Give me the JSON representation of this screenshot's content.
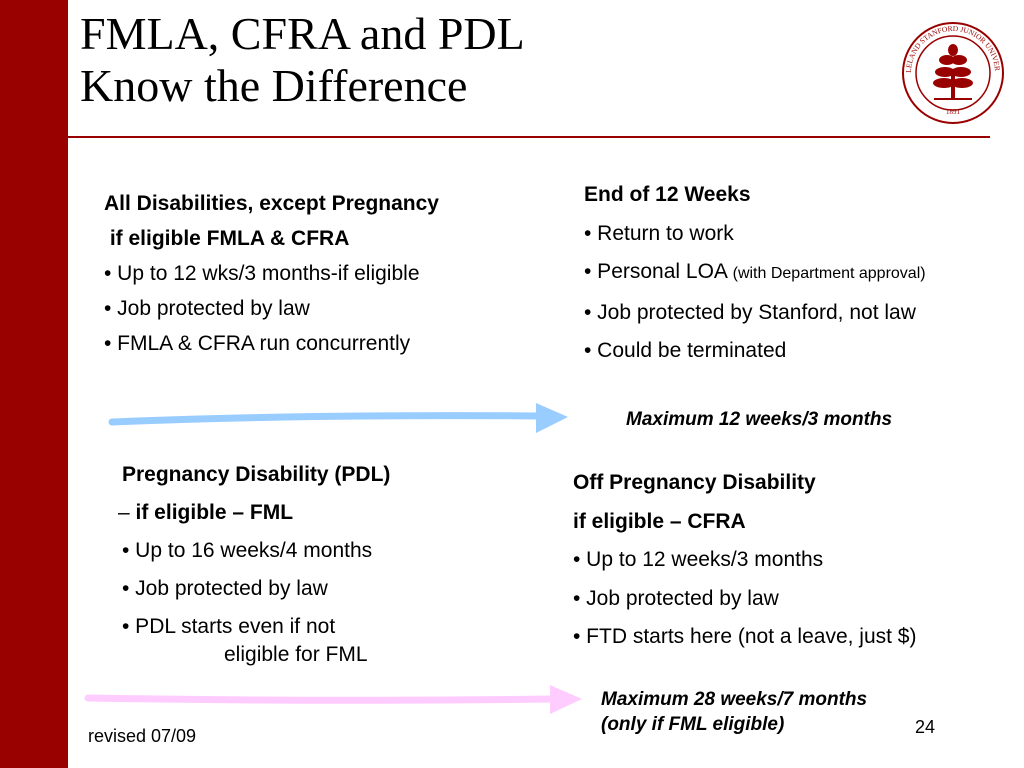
{
  "title": {
    "line1": "FMLA, CFRA and PDL",
    "line2": "Know the Difference"
  },
  "seal": {
    "text": "LELAND STANFORD JUNIOR UNIVERSITY",
    "year": "1891"
  },
  "left_top": {
    "heading1": "All Disabilities, except Pregnancy",
    "heading2": " if eligible FMLA & CFRA",
    "bullets": [
      "• Up to 12 wks/3 months-if eligible",
      "• Job protected by law",
      "• FMLA & CFRA run concurrently"
    ]
  },
  "right_top": {
    "heading": "End of 12 Weeks",
    "b1": "• Return to work",
    "b2_main": "• Personal LOA ",
    "b2_note": "(with Department approval)",
    "b3": "• Job protected by Stanford, not law",
    "b4": "• Could be terminated"
  },
  "max1": "Maximum 12 weeks/3 months",
  "left_bottom": {
    "heading1": "Pregnancy Disability (PDL)",
    "heading2_dash": "– ",
    "heading2": "if eligible – FML",
    "b1": "• Up to 16 weeks/4 months",
    "b2": "• Job protected by law",
    "b3": "• PDL starts even if not",
    "b3_cont": "eligible for FML"
  },
  "right_bottom": {
    "heading1": "Off Pregnancy Disability",
    "heading2": "if eligible – CFRA",
    "bullets": [
      "• Up to 12 weeks/3 months",
      "• Job protected by law",
      "• FTD starts here (not a leave, just $)"
    ]
  },
  "max2": {
    "line1": "Maximum 28 weeks/7 months",
    "line2": "(only if FML eligible)"
  },
  "footer": "revised 07/09",
  "page_number": "24",
  "colors": {
    "accent": "#990000",
    "arrow_blue": "#99ccff",
    "arrow_pink": "#ffccff"
  }
}
